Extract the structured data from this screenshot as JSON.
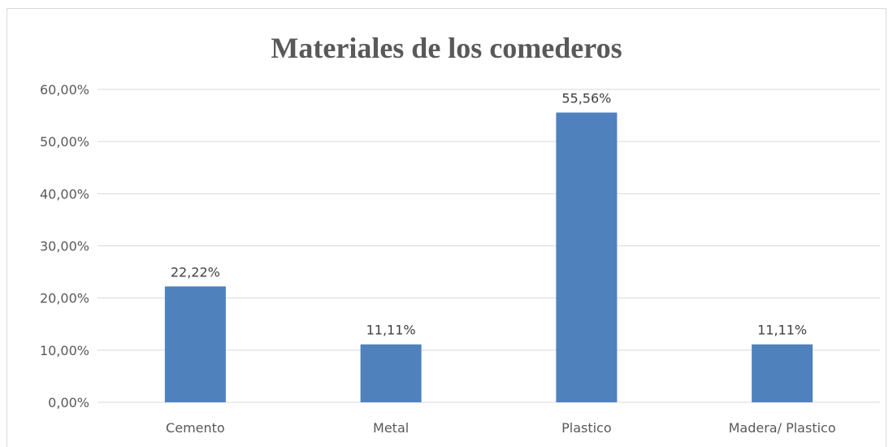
{
  "chart_data": {
    "type": "bar",
    "title": "Materiales de los comederos",
    "categories": [
      "Cemento",
      "Metal",
      "Plastico",
      "Madera/ Plastico"
    ],
    "values": [
      22.22,
      11.11,
      55.56,
      11.11
    ],
    "value_labels": [
      "22,22%",
      "11,11%",
      "55,56%",
      "11,11%"
    ],
    "y_ticks": [
      0,
      10,
      20,
      30,
      40,
      50,
      60
    ],
    "y_tick_labels": [
      "0,00%",
      "10,00%",
      "20,00%",
      "30,00%",
      "40,00%",
      "50,00%",
      "60,00%"
    ],
    "ylim": [
      0,
      60
    ],
    "xlabel": "",
    "ylabel": "",
    "grid": true,
    "legend": "none",
    "bar_color": "#4f81bd",
    "grid_color": "#d9d9d9"
  }
}
